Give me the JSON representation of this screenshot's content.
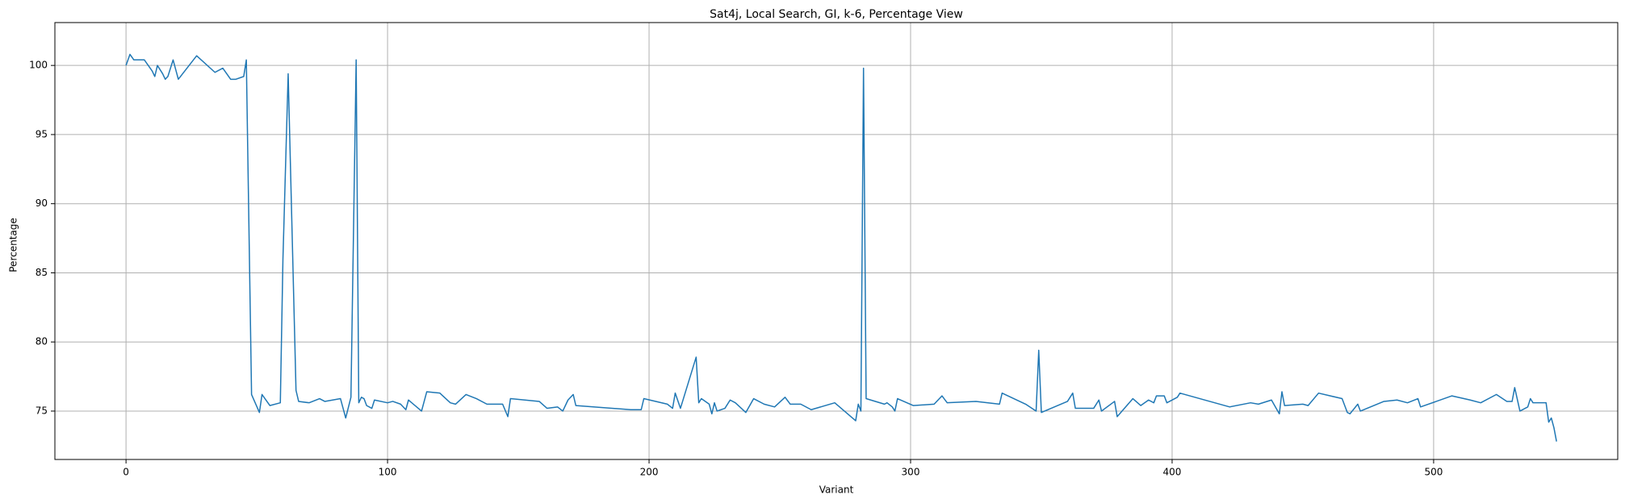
{
  "chart_data": {
    "type": "line",
    "title": "Sat4j, Local Search, GI, k-6, Percentage View",
    "x_label": "Variant",
    "y_label": "Percentage",
    "color": "#1f77b4",
    "grid": true,
    "xlim": [
      -27.2,
      570.4
    ],
    "ylim": [
      71.5,
      103.1
    ],
    "xticks": [
      0,
      100,
      200,
      300,
      400,
      500
    ],
    "yticks": [
      75,
      80,
      85,
      90,
      95,
      100
    ],
    "x": [
      0,
      1.5,
      3,
      6,
      7,
      10,
      11,
      12,
      14,
      15,
      16,
      18,
      20,
      27,
      34,
      37,
      40,
      42,
      45,
      46,
      48,
      51,
      52,
      55,
      59,
      60,
      62,
      65,
      66,
      70,
      74,
      76,
      82,
      84,
      86,
      88,
      89,
      90,
      91,
      92,
      94,
      95,
      100,
      102,
      105,
      107,
      108,
      113,
      115,
      120,
      124,
      126,
      130,
      134,
      138,
      144,
      146,
      147,
      158,
      161,
      165,
      167,
      169,
      171,
      172,
      193,
      197,
      198,
      207,
      209,
      210,
      212,
      218,
      219,
      220,
      223,
      224,
      225,
      226,
      229,
      231,
      233,
      237,
      240,
      244,
      248,
      252,
      254,
      258,
      262,
      271,
      279,
      280,
      281,
      282,
      283,
      290,
      291,
      293,
      294,
      295,
      301,
      309,
      312,
      314,
      325,
      334,
      335,
      344,
      348,
      349,
      350,
      360,
      362,
      363,
      370,
      372,
      373,
      378,
      379,
      385,
      388,
      391,
      393,
      394,
      397,
      398,
      402,
      403,
      422,
      430,
      433,
      438,
      441,
      442,
      443,
      450,
      452,
      456,
      465,
      467,
      468,
      471,
      472,
      481,
      486,
      490,
      494,
      495,
      507,
      514,
      518,
      524,
      528,
      530,
      531,
      533,
      536,
      537,
      538,
      543,
      544,
      545,
      546,
      547
    ],
    "values": [
      100,
      100.8,
      100.4,
      100.4,
      100.4,
      99.6,
      99.2,
      100,
      99.4,
      99,
      99.2,
      100.4,
      99,
      100.7,
      99.5,
      99.8,
      99,
      99,
      99.2,
      100.4,
      76.2,
      74.9,
      76.2,
      75.4,
      75.6,
      86,
      99.4,
      76.5,
      75.7,
      75.6,
      75.9,
      75.7,
      75.9,
      74.5,
      76,
      100.4,
      75.6,
      76,
      75.9,
      75.4,
      75.2,
      75.8,
      75.6,
      75.7,
      75.5,
      75.1,
      75.8,
      75,
      76.4,
      76.3,
      75.6,
      75.5,
      76.2,
      75.9,
      75.5,
      75.5,
      74.6,
      75.9,
      75.7,
      75.2,
      75.3,
      75,
      75.8,
      76.2,
      75.4,
      75.1,
      75.1,
      75.9,
      75.5,
      75.2,
      76.3,
      75.2,
      78.9,
      75.6,
      75.9,
      75.5,
      74.8,
      75.6,
      75,
      75.2,
      75.8,
      75.6,
      74.9,
      75.9,
      75.5,
      75.3,
      76,
      75.5,
      75.5,
      75.1,
      75.6,
      74.3,
      75.5,
      75,
      99.8,
      75.9,
      75.5,
      75.6,
      75.3,
      75,
      75.9,
      75.4,
      75.5,
      76.1,
      75.6,
      75.7,
      75.5,
      76.3,
      75.5,
      75,
      79.4,
      74.9,
      75.7,
      76.3,
      75.2,
      75.2,
      75.8,
      75,
      75.7,
      74.6,
      75.9,
      75.4,
      75.8,
      75.6,
      76.1,
      76.1,
      75.6,
      76,
      76.3,
      75.3,
      75.6,
      75.5,
      75.8,
      74.8,
      76.4,
      75.4,
      75.5,
      75.4,
      76.3,
      75.9,
      74.9,
      74.8,
      75.5,
      75,
      75.7,
      75.8,
      75.6,
      75.9,
      75.3,
      76.1,
      75.8,
      75.6,
      76.2,
      75.7,
      75.7,
      76.7,
      75,
      75.3,
      75.9,
      75.6,
      75.6,
      74.2,
      74.5,
      73.8,
      72.8
    ]
  }
}
